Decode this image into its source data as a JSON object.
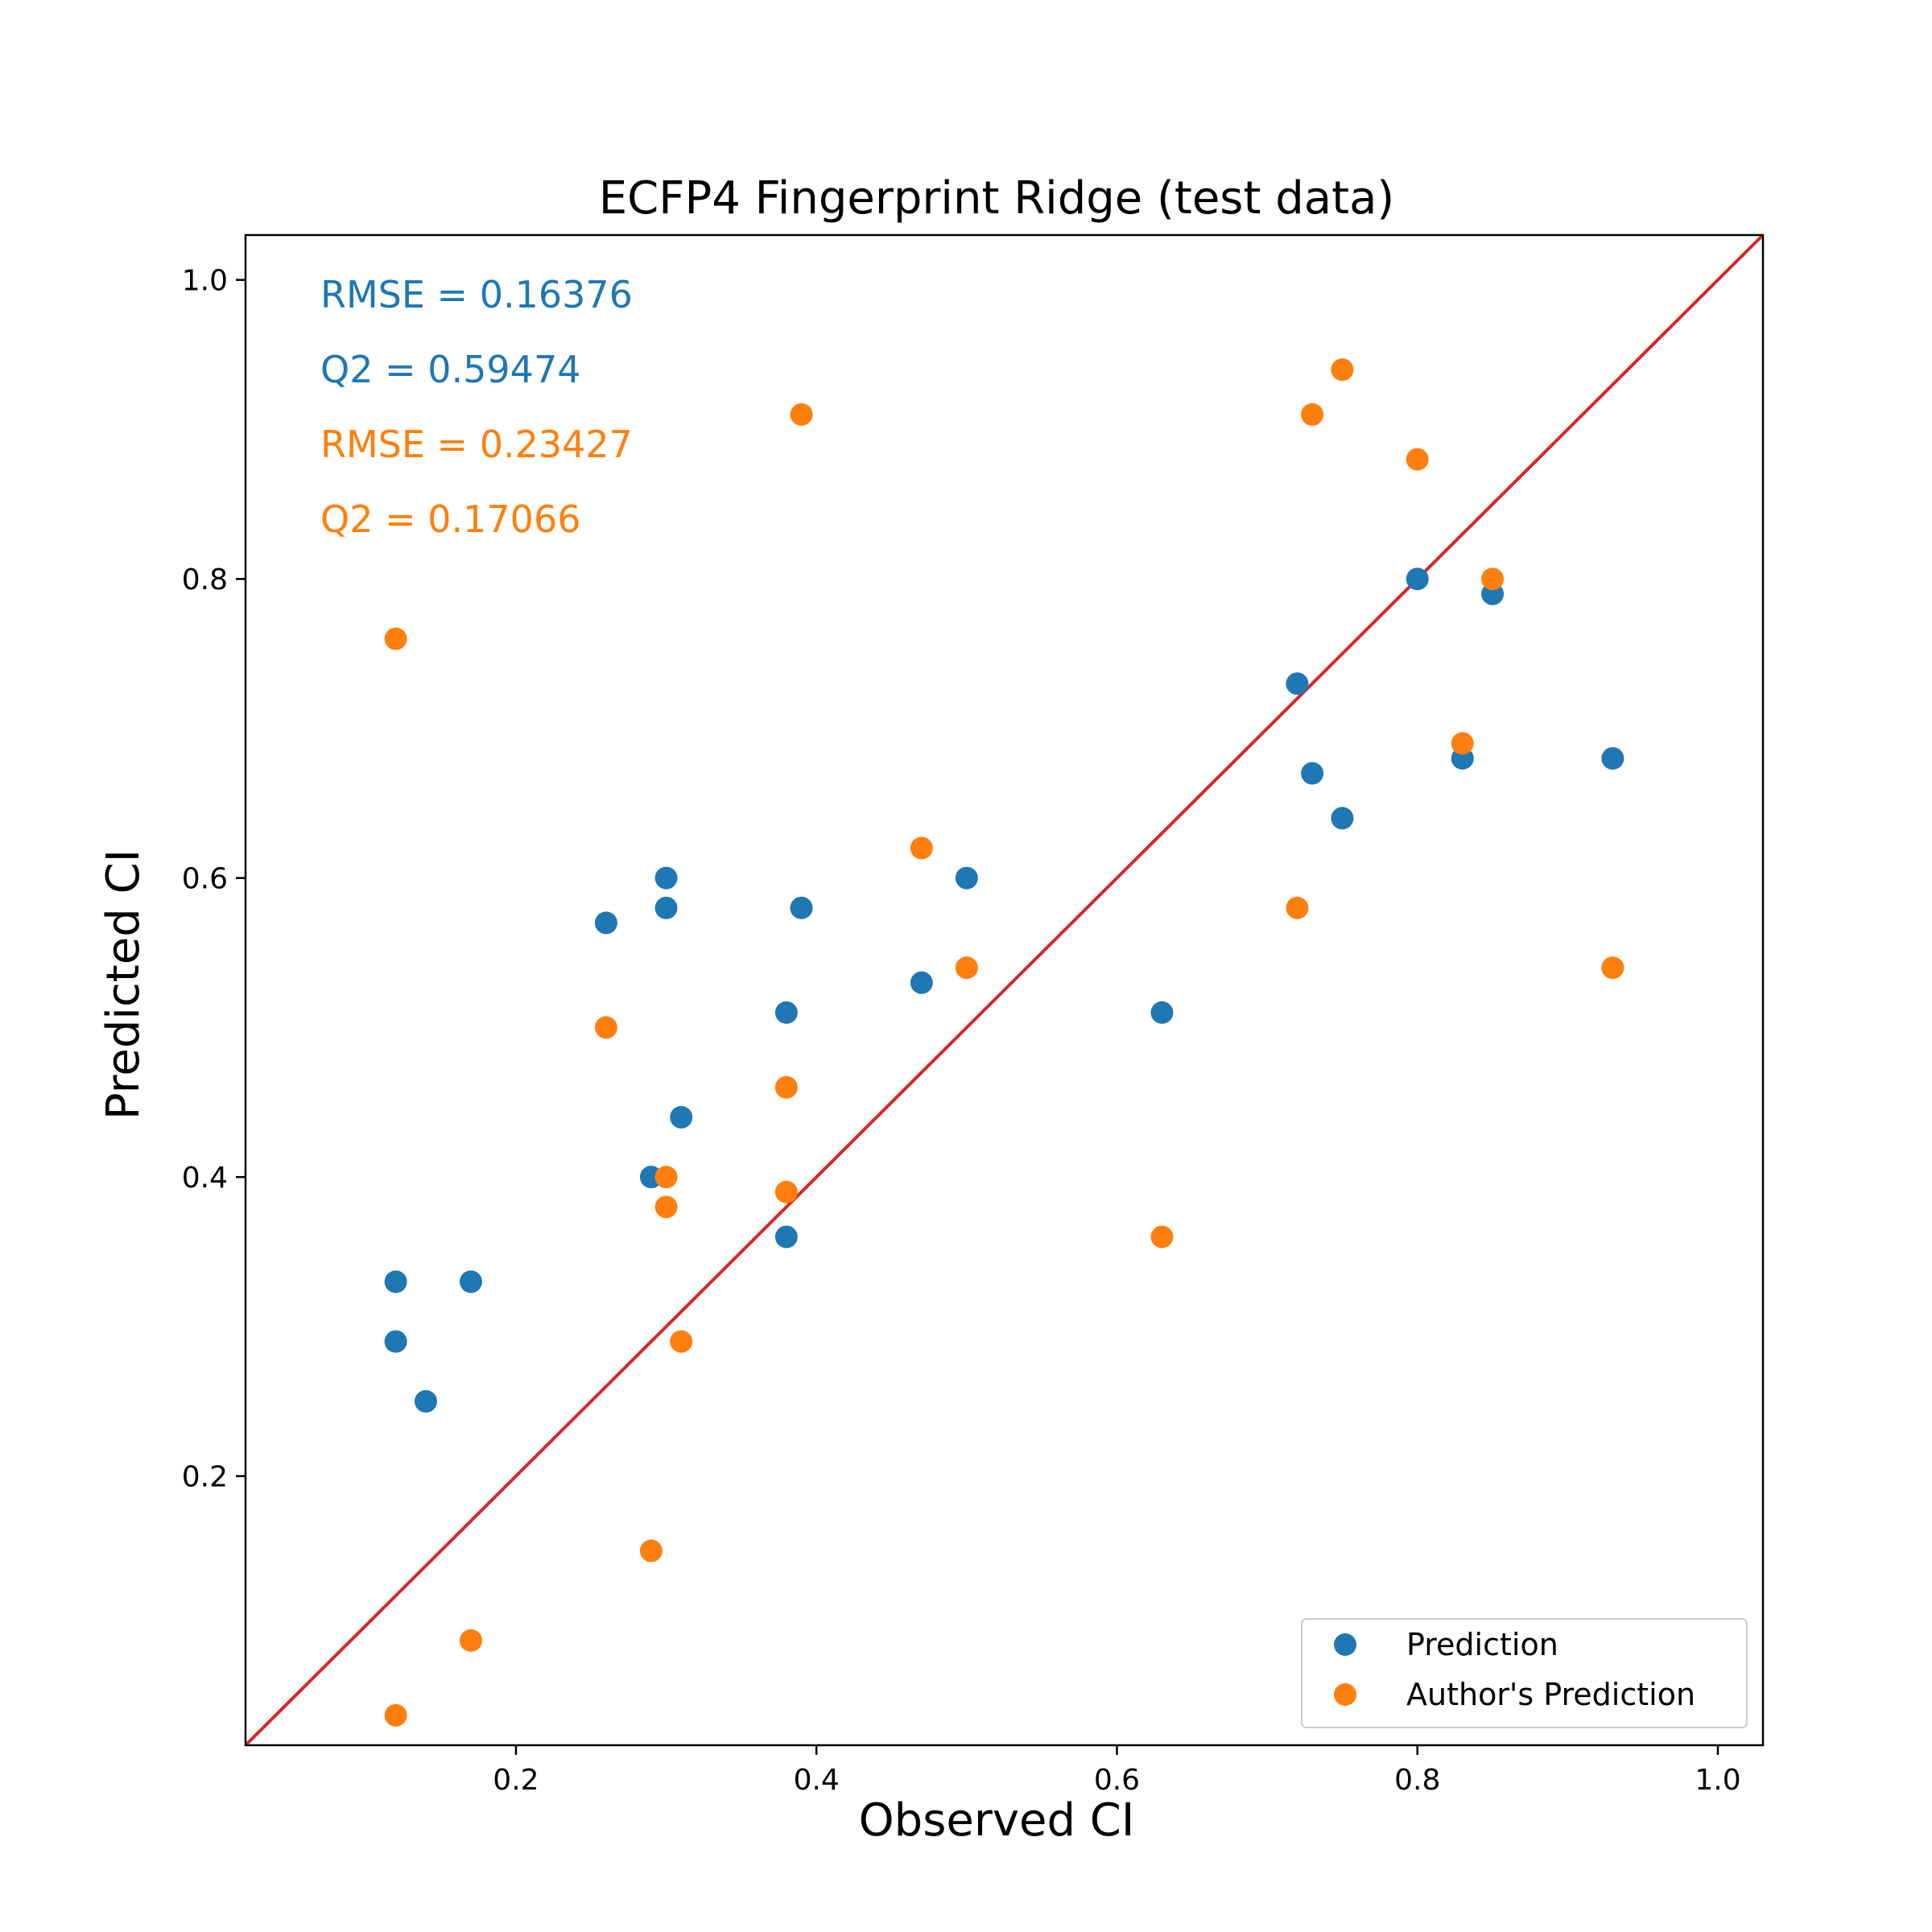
{
  "chart_data": {
    "type": "scatter",
    "title": "ECFP4 Fingerprint Ridge (test data)",
    "xlabel": "Observed CI",
    "ylabel": "Predicted CI",
    "xlim": [
      0.02,
      1.03
    ],
    "ylim": [
      0.02,
      1.03
    ],
    "xticks": [
      "0.2",
      "0.4",
      "0.6",
      "0.8",
      "1.0"
    ],
    "yticks": [
      "0.2",
      "0.4",
      "0.6",
      "0.8",
      "1.0"
    ],
    "grid": false,
    "legend_position": "bottom-right",
    "identity_line": {
      "from": [
        0.02,
        0.02
      ],
      "to": [
        1.03,
        1.03
      ],
      "color": "#d62728"
    },
    "annotations": [
      {
        "text": "RMSE = 0.16376",
        "color": "#1f77b4"
      },
      {
        "text": "Q2 = 0.59474",
        "color": "#1f77b4"
      },
      {
        "text": "RMSE = 0.23427",
        "color": "#ff7f0e"
      },
      {
        "text": "Q2 = 0.17066",
        "color": "#ff7f0e"
      }
    ],
    "series": [
      {
        "name": "Prediction",
        "color": "#1f77b4",
        "points": [
          [
            0.12,
            0.33
          ],
          [
            0.12,
            0.29
          ],
          [
            0.14,
            0.25
          ],
          [
            0.17,
            0.33
          ],
          [
            0.26,
            0.57
          ],
          [
            0.29,
            0.4
          ],
          [
            0.3,
            0.6
          ],
          [
            0.3,
            0.58
          ],
          [
            0.31,
            0.44
          ],
          [
            0.38,
            0.51
          ],
          [
            0.38,
            0.36
          ],
          [
            0.39,
            0.58
          ],
          [
            0.47,
            0.53
          ],
          [
            0.5,
            0.6
          ],
          [
            0.63,
            0.51
          ],
          [
            0.72,
            0.73
          ],
          [
            0.73,
            0.67
          ],
          [
            0.75,
            0.64
          ],
          [
            0.8,
            0.8
          ],
          [
            0.83,
            0.68
          ],
          [
            0.85,
            0.79
          ],
          [
            0.93,
            0.68
          ]
        ]
      },
      {
        "name": "Author's Prediction",
        "color": "#ff7f0e",
        "points": [
          [
            0.12,
            0.76
          ],
          [
            0.12,
            0.04
          ],
          [
            0.17,
            0.09
          ],
          [
            0.26,
            0.5
          ],
          [
            0.29,
            0.15
          ],
          [
            0.3,
            0.4
          ],
          [
            0.3,
            0.38
          ],
          [
            0.31,
            0.29
          ],
          [
            0.38,
            0.46
          ],
          [
            0.38,
            0.39
          ],
          [
            0.39,
            0.91
          ],
          [
            0.47,
            0.62
          ],
          [
            0.5,
            0.54
          ],
          [
            0.63,
            0.36
          ],
          [
            0.72,
            0.58
          ],
          [
            0.73,
            0.91
          ],
          [
            0.75,
            0.94
          ],
          [
            0.8,
            0.88
          ],
          [
            0.83,
            0.69
          ],
          [
            0.85,
            0.8
          ],
          [
            0.93,
            0.54
          ]
        ]
      }
    ]
  }
}
